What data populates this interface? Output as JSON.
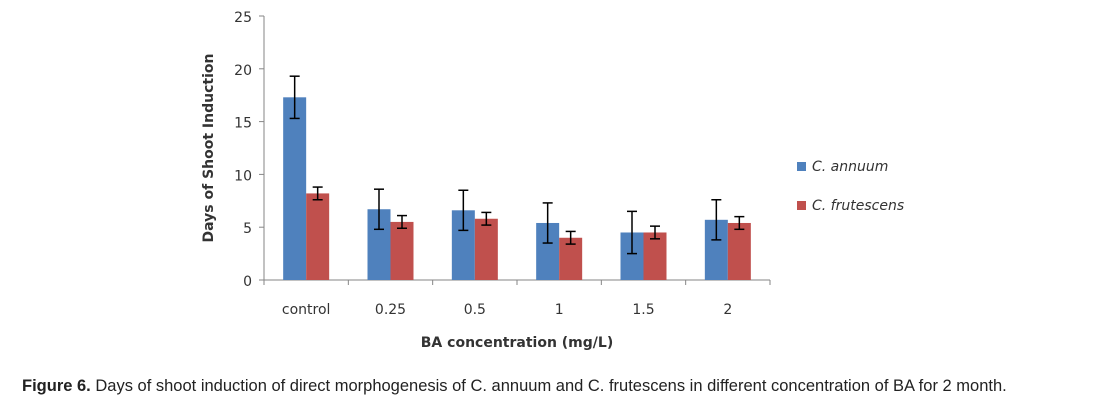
{
  "chart_data": {
    "type": "bar",
    "title": "",
    "xlabel": "BA concentration (mg/L)",
    "ylabel": "Days of Shoot Induction",
    "ylim": [
      0,
      25
    ],
    "yticks": [
      "0",
      "5",
      "10",
      "15",
      "20",
      "25"
    ],
    "ytick_values": [
      0,
      5,
      10,
      15,
      20,
      25
    ],
    "categories": [
      "control",
      "0.25",
      "0.5",
      "1",
      "1.5",
      "2"
    ],
    "legend_position": "right",
    "grid": false,
    "series": [
      {
        "name": "C. annuum",
        "color": "#4F81BD",
        "values": [
          17.3,
          6.7,
          6.6,
          5.4,
          4.5,
          5.7
        ],
        "error": [
          2.0,
          1.9,
          1.9,
          1.9,
          2.0,
          1.9
        ]
      },
      {
        "name": "C. frutescens",
        "color": "#C0504D",
        "values": [
          8.2,
          5.5,
          5.8,
          4.0,
          4.5,
          5.4
        ],
        "error": [
          0.6,
          0.6,
          0.6,
          0.6,
          0.6,
          0.6
        ]
      }
    ]
  },
  "caption": {
    "label": "Figure 6.",
    "text": " Days of shoot induction of direct morphogenesis of C. annuum and C. frutescens in different concentration of BA for 2 month."
  }
}
